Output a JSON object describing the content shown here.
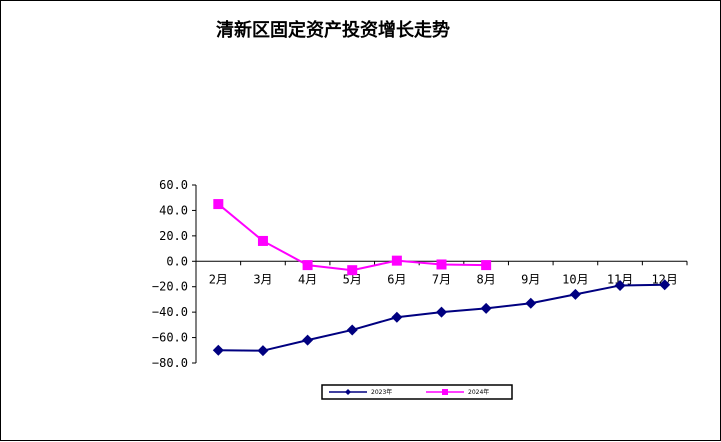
{
  "chart_data": {
    "type": "line",
    "title": "清新区固定资产投资增长走势",
    "categories": [
      "2月",
      "3月",
      "4月",
      "5月",
      "6月",
      "7月",
      "8月",
      "9月",
      "10月",
      "11月",
      "12月"
    ],
    "y_tick_labels": [
      "60.0",
      "40.0",
      "20.0",
      "0.0",
      "−20.0",
      "−40.0",
      "−60.0",
      "−80.0"
    ],
    "ylim": [
      -80,
      60
    ],
    "grid": false,
    "legend_position": "bottom",
    "series": [
      {
        "name": "2023年",
        "color": "#000080",
        "marker": "diamond",
        "values": [
          -70.0,
          -70.3,
          -62.0,
          -54.0,
          -44.0,
          -40.0,
          -37.0,
          -33.0,
          -26.0,
          -19.0,
          -18.5
        ]
      },
      {
        "name": "2024年",
        "color": "#FF00FF",
        "marker": "square",
        "values": [
          45.0,
          16.0,
          -3.0,
          -7.0,
          0.5,
          -2.5,
          -3.0,
          null,
          null,
          null,
          null
        ]
      }
    ]
  }
}
